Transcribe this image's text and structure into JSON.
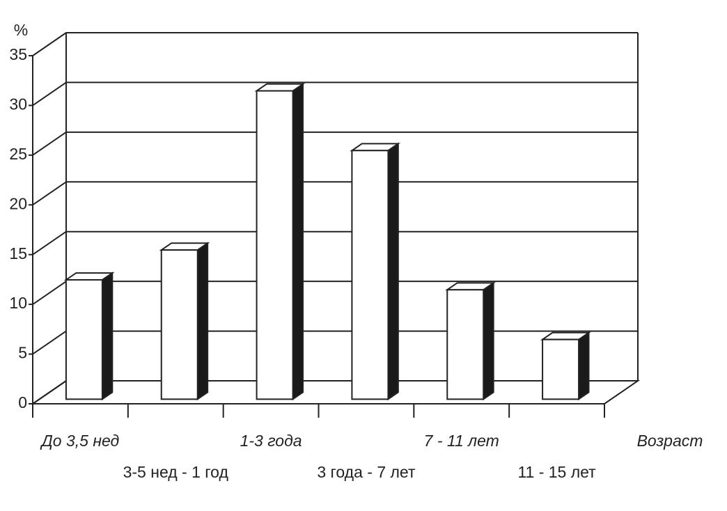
{
  "chart_data": {
    "type": "bar3d",
    "y_label": "%",
    "x_label": "Возраст",
    "categories": [
      "До 3,5 нед",
      "3-5 нед - 1 год",
      "1-3 года",
      "3 года - 7 лет",
      "7 - 11 лет",
      "11 - 15 лет"
    ],
    "values": [
      12,
      15,
      31,
      25,
      11,
      6
    ],
    "color": "#ffffff",
    "side_color": "#1a1a1a",
    "ylim": [
      0,
      35
    ],
    "yticks": [
      0,
      5,
      10,
      15,
      20,
      25,
      30,
      35
    ],
    "grid": true
  }
}
